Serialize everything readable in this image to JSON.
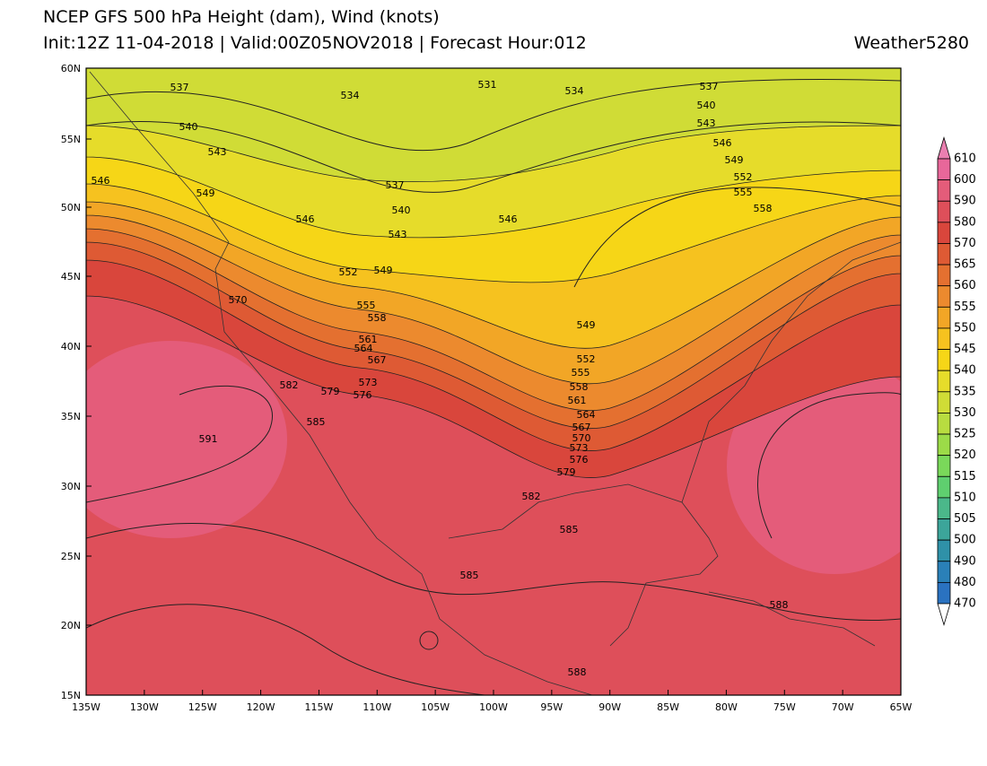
{
  "header": {
    "title": "NCEP GFS 500 hPa Height (dam), Wind (knots)",
    "subtitle": "Init:12Z 11-04-2018 | Valid:00Z05NOV2018 | Forecast Hour:012",
    "brand": "Weather5280"
  },
  "map": {
    "lat_labels": [
      "60N",
      "55N",
      "50N",
      "45N",
      "40N",
      "35N",
      "30N",
      "25N",
      "20N",
      "15N"
    ],
    "lon_labels": [
      "135W",
      "130W",
      "125W",
      "120W",
      "115W",
      "110W",
      "105W",
      "100W",
      "95W",
      "90W",
      "85W",
      "80W",
      "75W",
      "70W",
      "65W"
    ],
    "contour_labels": [
      "537",
      "534",
      "531",
      "534",
      "537",
      "540",
      "543",
      "546",
      "549",
      "552",
      "555",
      "558",
      "540",
      "543",
      "546",
      "549",
      "537",
      "540",
      "543",
      "546",
      "546",
      "552",
      "549",
      "570",
      "555",
      "558",
      "561",
      "564",
      "567",
      "573",
      "576",
      "579",
      "582",
      "585",
      "591",
      "549",
      "552",
      "555",
      "558",
      "561",
      "564",
      "567",
      "570",
      "573",
      "576",
      "579",
      "582",
      "585",
      "585",
      "588",
      "588"
    ]
  },
  "colorbar": {
    "labels": [
      "610",
      "600",
      "590",
      "580",
      "570",
      "565",
      "560",
      "555",
      "550",
      "545",
      "540",
      "535",
      "530",
      "525",
      "520",
      "515",
      "510",
      "505",
      "500",
      "490",
      "480",
      "470"
    ],
    "colors": [
      "#ea7fb0",
      "#e8679a",
      "#e45c7a",
      "#de4f5a",
      "#d9463c",
      "#de5a34",
      "#e47030",
      "#ec8a2e",
      "#f2a626",
      "#f6c21f",
      "#f6d617",
      "#e6dc2a",
      "#d0dc36",
      "#b8dc40",
      "#9cdb48",
      "#7ad85a",
      "#5fcf6f",
      "#4bb88a",
      "#3ca59a",
      "#2f91a8",
      "#2a80b8",
      "#2a72c0",
      "#ffffff"
    ]
  }
}
